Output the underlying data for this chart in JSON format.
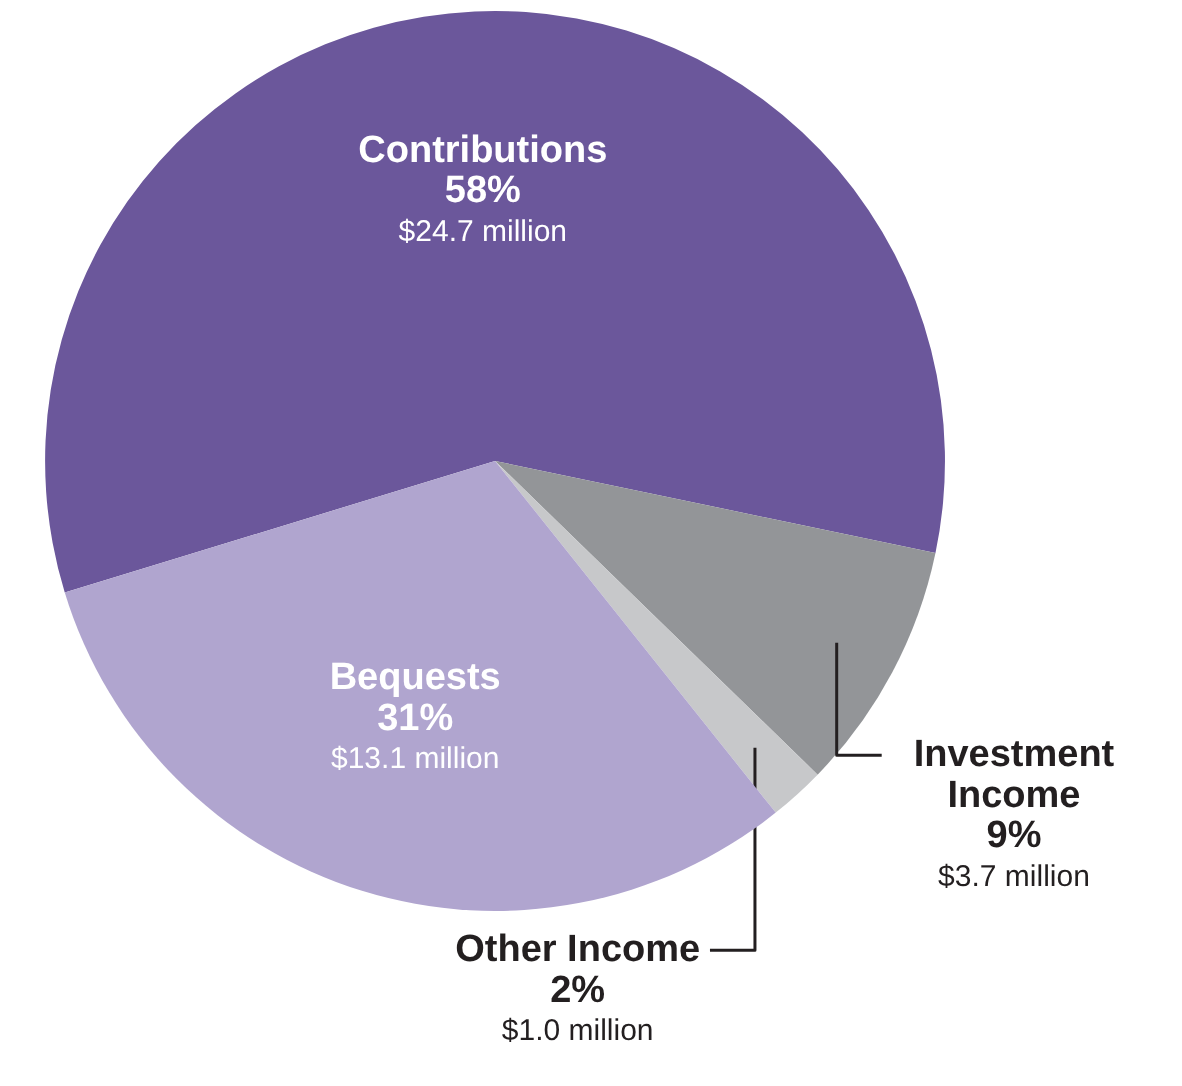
{
  "chart_data": {
    "type": "pie",
    "categories": [
      "Contributions",
      "Investment\nIncome",
      "Other Income",
      "Bequests"
    ],
    "values": [
      58,
      9,
      2,
      31
    ],
    "colors": [
      "#6b579b",
      "#939598",
      "#c7c8ca",
      "#b0a5cf"
    ],
    "value_labels": [
      "58%",
      "9%",
      "2%",
      "31%"
    ],
    "annotations": [
      "$24.7 million",
      "$3.7 million",
      "$1.0 million",
      "$13.1 million"
    ]
  }
}
